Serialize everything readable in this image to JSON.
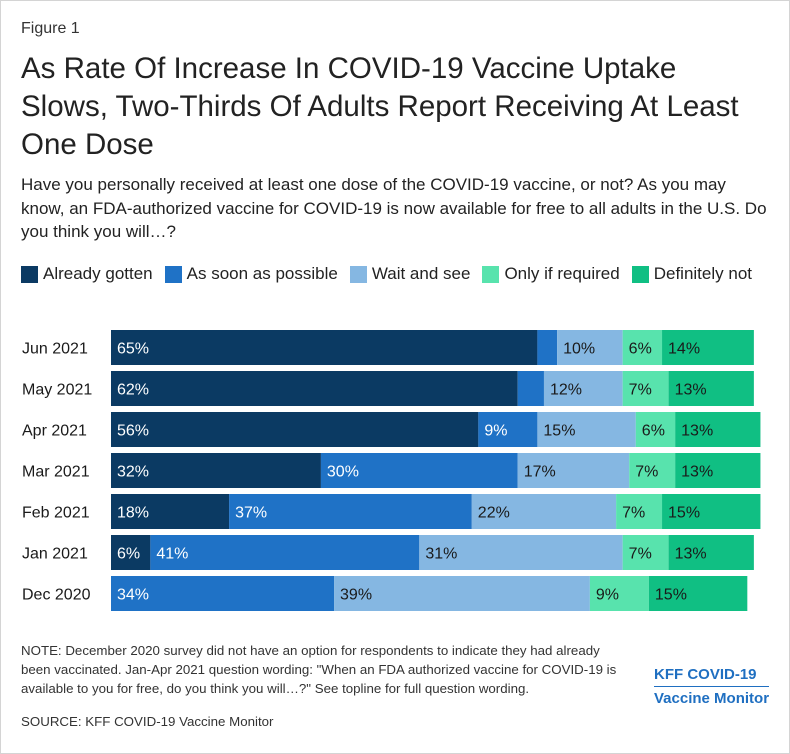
{
  "figure_label": "Figure 1",
  "title": "As Rate Of Increase In COVID-19 Vaccine Uptake Slows, Two-Thirds Of Adults Report Receiving At Least One Dose",
  "subtitle": "Have you personally received at least one dose of the COVID-19 vaccine, or not? As you may know, an FDA-authorized vaccine for COVID-19 is now available for free to all adults in the U.S. Do you think you will…?",
  "note": "NOTE: December 2020 survey did not have an option for respondents to indicate they had already been vaccinated. Jan-Apr 2021 question wording: \"When an FDA authorized vaccine for COVID-19 is available to you for free, do you think you will…?\" See topline for full question wording.",
  "source": "SOURCE: KFF COVID-19 Vaccine Monitor",
  "logo": {
    "line1": "KFF COVID-19",
    "line2": "Vaccine Monitor"
  },
  "colors": {
    "Already gotten": "#0b3a63",
    "As soon as possible": "#1f72c6",
    "Wait and see": "#85b7e2",
    "Only if required": "#58e3ad",
    "Definitely not": "#10bf83"
  },
  "chart_data": {
    "type": "bar",
    "orientation": "horizontal",
    "stacked": true,
    "categories": [
      "Jun 2021",
      "May 2021",
      "Apr 2021",
      "Mar 2021",
      "Feb 2021",
      "Jan 2021",
      "Dec 2020"
    ],
    "series": [
      {
        "name": "Already gotten",
        "values": [
          65,
          62,
          56,
          32,
          18,
          6,
          null
        ],
        "labels": [
          "65%",
          "62%",
          "56%",
          "32%",
          "18%",
          "6%",
          ""
        ]
      },
      {
        "name": "As soon as possible",
        "values": [
          3,
          4,
          9,
          30,
          37,
          41,
          34
        ],
        "labels": [
          "",
          "",
          "9%",
          "30%",
          "37%",
          "41%",
          "34%"
        ]
      },
      {
        "name": "Wait and see",
        "values": [
          10,
          12,
          15,
          17,
          22,
          31,
          39
        ],
        "labels": [
          "10%",
          "12%",
          "15%",
          "17%",
          "22%",
          "31%",
          "39%"
        ]
      },
      {
        "name": "Only if required",
        "values": [
          6,
          7,
          6,
          7,
          7,
          7,
          9
        ],
        "labels": [
          "6%",
          "7%",
          "6%",
          "7%",
          "7%",
          "7%",
          "9%"
        ]
      },
      {
        "name": "Definitely not",
        "values": [
          14,
          13,
          13,
          13,
          15,
          13,
          15
        ],
        "labels": [
          "14%",
          "13%",
          "13%",
          "13%",
          "15%",
          "13%",
          "15%"
        ]
      }
    ],
    "xlim": [
      0,
      100
    ],
    "legend_position": "top-left",
    "grid": false,
    "label_colors": {
      "Already gotten": "#ffffff",
      "As soon as possible": "#ffffff",
      "Wait and see": "#1a1a1a",
      "Only if required": "#1a1a1a",
      "Definitely not": "#1a1a1a"
    }
  }
}
